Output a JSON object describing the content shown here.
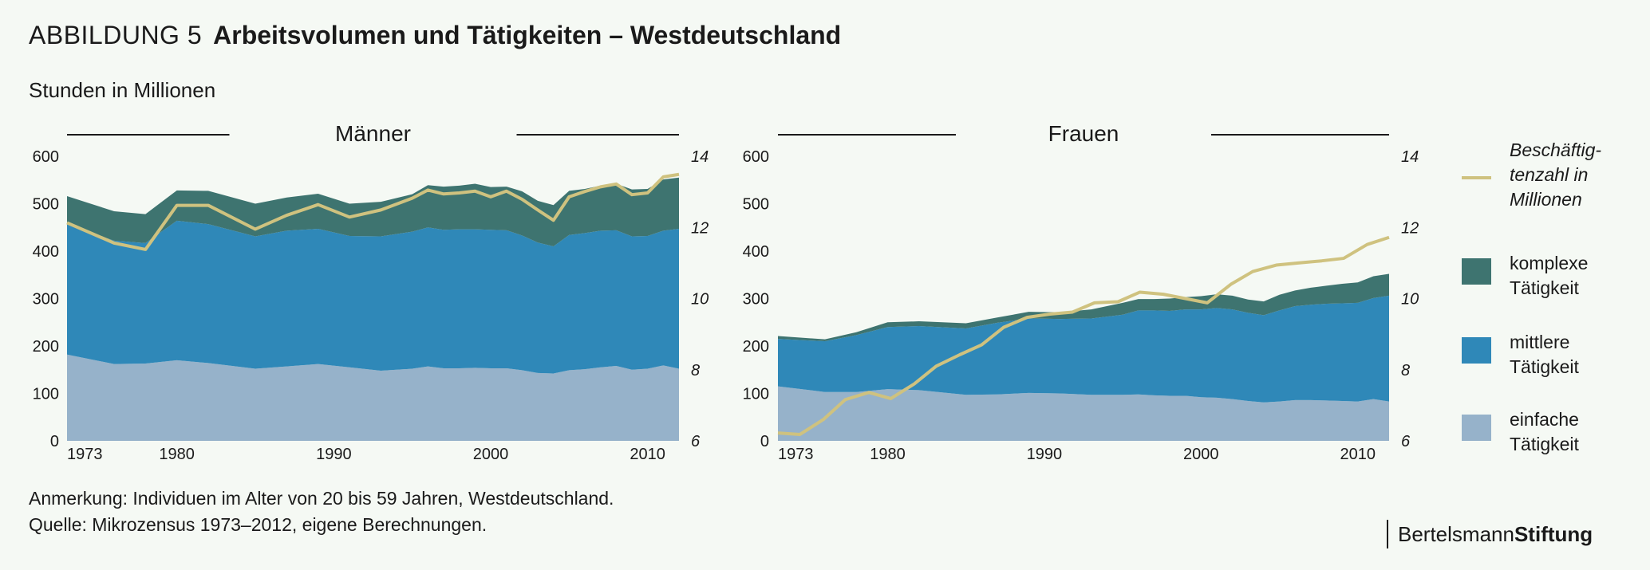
{
  "header": {
    "figure_label": "ABBILDUNG 5",
    "title": "Arbeitsvolumen und Tätigkeiten – Westdeutschland",
    "unit": "Stunden in Millionen"
  },
  "notes": {
    "line1": "Anmerkung: Individuen im Alter von 20 bis 59 Jahren, Westdeutschland.",
    "line2": "Quelle: Mikrozensus 1973–2012, eigene Berechnungen."
  },
  "logo": {
    "part1": "Bertelsmann",
    "part2": "Stiftung"
  },
  "colors": {
    "einfach": "#96b2ca",
    "mittel": "#2f88b8",
    "komplex": "#3e7470",
    "line": "#cfc27f",
    "bg": "#f5f9f4"
  },
  "legend": {
    "line_label": [
      "Beschäftig-",
      "tenzahl in",
      "Millionen"
    ],
    "komplex_label": [
      "komplexe",
      "Tätigkeit"
    ],
    "mittel_label": [
      "mittlere",
      "Tätigkeit"
    ],
    "einfach_label": [
      "einfache",
      "Tätigkeit"
    ]
  },
  "chart_data": [
    {
      "type": "area",
      "stacked": true,
      "title": "Männer",
      "ylabel": "Stunden in Millionen",
      "ylim": [
        0,
        600
      ],
      "yticks": [
        "0",
        "100",
        "200",
        "300",
        "400",
        "500",
        "600"
      ],
      "y2lim": [
        6,
        14
      ],
      "y2ticks": [
        "6",
        "8",
        "10",
        "12",
        "14"
      ],
      "xticks": [
        "1973",
        "1980",
        "1990",
        "2000",
        "2010"
      ],
      "x": [
        1973,
        1976,
        1978,
        1980,
        1982,
        1985,
        1987,
        1989,
        1991,
        1993,
        1995,
        1996,
        1997,
        1998,
        1999,
        2000,
        2001,
        2002,
        2003,
        2004,
        2005,
        2006,
        2007,
        2008,
        2009,
        2010,
        2011,
        2012
      ],
      "series": [
        {
          "name": "einfache Tätigkeit",
          "values": [
            182,
            162,
            163,
            170,
            164,
            152,
            157,
            162,
            155,
            148,
            152,
            157,
            153,
            153,
            154,
            153,
            153,
            149,
            143,
            142,
            149,
            151,
            155,
            158,
            150,
            152,
            159,
            152
          ]
        },
        {
          "name": "mittlere Tätigkeit",
          "values": [
            274,
            260,
            254,
            294,
            293,
            279,
            286,
            285,
            277,
            283,
            289,
            293,
            292,
            293,
            292,
            292,
            291,
            284,
            275,
            268,
            285,
            287,
            288,
            286,
            281,
            280,
            284,
            295
          ]
        },
        {
          "name": "komplexe Tätigkeit",
          "values": [
            60,
            62,
            61,
            64,
            70,
            69,
            70,
            74,
            68,
            73,
            79,
            89,
            91,
            92,
            96,
            90,
            92,
            93,
            88,
            87,
            93,
            93,
            95,
            98,
            99,
            99,
            108,
            108
          ]
        }
      ],
      "line": {
        "name": "Beschäftigtenzahl in Millionen",
        "axis": "right",
        "x": [
          1973,
          1976,
          1978,
          1980,
          1982,
          1985,
          1987,
          1989,
          1991,
          1993,
          1995,
          1996,
          1997,
          1998,
          1999,
          2000,
          2001,
          2002,
          2003,
          2004,
          2005,
          2006,
          2007,
          2008,
          2009,
          2010,
          2011,
          2012
        ],
        "values": [
          12.13,
          11.56,
          11.38,
          12.62,
          12.62,
          11.95,
          12.34,
          12.64,
          12.29,
          12.49,
          12.82,
          13.05,
          12.94,
          12.97,
          13.02,
          12.86,
          13.02,
          12.79,
          12.49,
          12.2,
          12.86,
          13.01,
          13.14,
          13.22,
          12.92,
          12.97,
          13.42,
          13.49
        ]
      }
    },
    {
      "type": "area",
      "stacked": true,
      "title": "Frauen",
      "ylabel": "Stunden in Millionen",
      "ylim": [
        0,
        600
      ],
      "yticks": [
        "0",
        "100",
        "200",
        "300",
        "400",
        "500",
        "600"
      ],
      "y2lim": [
        6,
        14
      ],
      "y2ticks": [
        "6",
        "8",
        "10",
        "12",
        "14"
      ],
      "xticks": [
        "1973",
        "1980",
        "1990",
        "2000",
        "2010"
      ],
      "x": [
        1973,
        1976,
        1978,
        1980,
        1982,
        1985,
        1987,
        1989,
        1991,
        1993,
        1995,
        1996,
        1997,
        1998,
        1999,
        2000,
        2001,
        2002,
        2003,
        2004,
        2005,
        2006,
        2007,
        2008,
        2009,
        2010,
        2011,
        2012
      ],
      "series": [
        {
          "name": "einfache Tätigkeit",
          "values": [
            115,
            103,
            103,
            109,
            107,
            97,
            98,
            101,
            100,
            97,
            97,
            98,
            96,
            95,
            95,
            92,
            91,
            88,
            84,
            81,
            83,
            86,
            86,
            85,
            84,
            83,
            88,
            83
          ]
        },
        {
          "name": "mittlere Tätigkeit",
          "values": [
            100,
            107,
            120,
            131,
            135,
            140,
            151,
            157,
            157,
            161,
            169,
            177,
            179,
            179,
            182,
            185,
            189,
            189,
            186,
            184,
            192,
            198,
            201,
            204,
            206,
            208,
            213,
            223
          ]
        },
        {
          "name": "komplexe Tätigkeit",
          "values": [
            6,
            4,
            6,
            10,
            10,
            11,
            11,
            14,
            14,
            19,
            25,
            24,
            24,
            26,
            26,
            28,
            29,
            29,
            28,
            29,
            33,
            33,
            36,
            38,
            41,
            43,
            46,
            46
          ]
        }
      ],
      "line": {
        "name": "Beschäftigtenzahl in Millionen",
        "axis": "right",
        "x": [
          1973,
          1974.4,
          1975.9,
          1977.3,
          1978.8,
          1980.2,
          1981.7,
          1983.1,
          1984.6,
          1986,
          1987.4,
          1988.9,
          1990.3,
          1991.8,
          1993.2,
          1994.7,
          1996.1,
          1997.6,
          1999,
          2000.4,
          2001.9,
          2003.3,
          2004.8,
          2006.2,
          2007.7,
          2009.1,
          2010.6,
          2012
        ],
        "values": [
          6.22,
          6.18,
          6.6,
          7.16,
          7.36,
          7.19,
          7.6,
          8.1,
          8.42,
          8.7,
          9.19,
          9.47,
          9.56,
          9.62,
          9.88,
          9.91,
          10.18,
          10.12,
          10.0,
          9.88,
          10.4,
          10.76,
          10.94,
          11.0,
          11.06,
          11.13,
          11.52,
          11.72
        ]
      }
    }
  ]
}
